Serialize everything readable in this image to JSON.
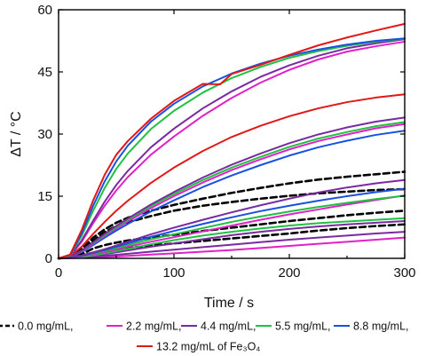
{
  "chart_data": {
    "type": "line",
    "xlabel": "Time / s",
    "ylabel": "ΔT / °C",
    "xlim": [
      0,
      300
    ],
    "ylim": [
      0,
      60
    ],
    "x_ticks": [
      0,
      100,
      200,
      300
    ],
    "y_ticks": [
      0,
      15,
      30,
      45,
      60
    ],
    "x_tick_labels": [
      "0",
      "100",
      "200",
      "300"
    ],
    "y_tick_labels": [
      "0",
      "15",
      "30",
      "45",
      "60"
    ],
    "grid": false,
    "legend_position": "bottom",
    "legend_entries": [
      {
        "label": "0.0 mg/mL,",
        "color": "#000000",
        "dash": "dashed"
      },
      {
        "label": "2.2 mg/mL,",
        "color": "#e020c8",
        "dash": "solid"
      },
      {
        "label": "4.4 mg/mL,",
        "color": "#7a2aa0",
        "dash": "solid"
      },
      {
        "label": "5.5 mg/mL,",
        "color": "#20c040",
        "dash": "solid"
      },
      {
        "label": "8.8 mg/mL,",
        "color": "#1850e0",
        "dash": "solid"
      },
      {
        "label": "13.2 mg/mL of Fe₃O₄",
        "color": "#e01818",
        "dash": "solid"
      }
    ],
    "series": [
      {
        "color": "#000000",
        "dash": "dashed",
        "x": [
          0,
          10,
          20,
          30,
          40,
          50,
          60,
          80,
          100,
          125,
          150,
          175,
          200,
          225,
          250,
          275,
          300
        ],
        "values": [
          0,
          0.2,
          0.8,
          1.3,
          1.7,
          2.1,
          2.5,
          3.1,
          3.6,
          4.2,
          4.8,
          5.4,
          6.0,
          6.7,
          7.3,
          7.8,
          8.2
        ]
      },
      {
        "color": "#000000",
        "dash": "dashed",
        "x": [
          0,
          10,
          20,
          30,
          40,
          50,
          60,
          80,
          100,
          125,
          150,
          175,
          200,
          225,
          250,
          275,
          300
        ],
        "values": [
          0,
          0.2,
          1.0,
          2.4,
          3.2,
          3.8,
          4.3,
          5.0,
          5.7,
          6.6,
          7.4,
          8.2,
          9.0,
          9.7,
          10.4,
          11.0,
          11.5
        ]
      },
      {
        "color": "#000000",
        "dash": "dashed",
        "x": [
          0,
          10,
          20,
          30,
          40,
          50,
          60,
          80,
          100,
          125,
          150,
          175,
          200,
          225,
          250,
          275,
          300
        ],
        "values": [
          0,
          0.3,
          2.0,
          4.3,
          6.3,
          7.8,
          8.7,
          10.2,
          11.5,
          12.7,
          13.6,
          14.4,
          15.1,
          15.7,
          16.1,
          16.5,
          16.7
        ]
      },
      {
        "color": "#000000",
        "dash": "dashed",
        "x": [
          0,
          10,
          20,
          30,
          40,
          50,
          60,
          80,
          100,
          125,
          150,
          175,
          200,
          225,
          250,
          275,
          300
        ],
        "values": [
          0,
          0.3,
          2.2,
          5.0,
          7.0,
          8.6,
          9.8,
          11.5,
          12.9,
          14.4,
          15.8,
          17.0,
          18.1,
          19.0,
          19.7,
          20.3,
          20.9
        ]
      },
      {
        "color": "#e020c8",
        "dash": "solid",
        "x": [
          0,
          20,
          40,
          60,
          80,
          100,
          125,
          150,
          175,
          200,
          225,
          250,
          275,
          300
        ],
        "values": [
          0,
          0.1,
          0.3,
          0.6,
          0.9,
          1.2,
          1.6,
          2.0,
          2.5,
          3.0,
          3.5,
          4.0,
          4.5,
          5.0
        ]
      },
      {
        "color": "#7a2aa0",
        "dash": "solid",
        "x": [
          0,
          20,
          40,
          60,
          80,
          100,
          125,
          150,
          175,
          200,
          225,
          250,
          275,
          300
        ],
        "values": [
          0,
          0.2,
          0.6,
          1.1,
          1.6,
          2.1,
          2.7,
          3.3,
          3.9,
          4.5,
          5.0,
          5.5,
          6.0,
          6.4
        ]
      },
      {
        "color": "#7a2aa0",
        "dash": "solid",
        "x": [
          0,
          20,
          40,
          60,
          80,
          100,
          125,
          150,
          175,
          200,
          225,
          250,
          275,
          300
        ],
        "values": [
          0,
          0.3,
          1.0,
          1.9,
          2.8,
          3.6,
          4.6,
          5.6,
          6.4,
          7.1,
          7.7,
          8.2,
          8.6,
          9.0
        ]
      },
      {
        "color": "#20c040",
        "dash": "solid",
        "x": [
          0,
          20,
          40,
          60,
          80,
          100,
          125,
          150,
          175,
          200,
          225,
          250,
          275,
          300
        ],
        "values": [
          0,
          0.3,
          1.2,
          2.3,
          3.4,
          4.4,
          5.5,
          6.4,
          7.2,
          7.9,
          8.5,
          8.9,
          9.3,
          9.7
        ]
      },
      {
        "color": "#e020c8",
        "dash": "solid",
        "x": [
          0,
          20,
          40,
          60,
          80,
          100,
          125,
          150,
          175,
          200,
          225,
          250,
          275,
          300
        ],
        "values": [
          0,
          0.5,
          1.5,
          2.8,
          4.0,
          5.1,
          6.5,
          7.9,
          9.3,
          10.6,
          11.8,
          13.0,
          14.1,
          15.2
        ]
      },
      {
        "color": "#20c040",
        "dash": "solid",
        "x": [
          0,
          20,
          40,
          60,
          80,
          100,
          125,
          150,
          175,
          200,
          225,
          250,
          275,
          300
        ],
        "values": [
          0,
          0.6,
          1.8,
          3.2,
          4.6,
          5.8,
          7.3,
          8.8,
          10.1,
          11.3,
          12.4,
          13.4,
          14.3,
          15.1
        ]
      },
      {
        "color": "#1850e0",
        "dash": "solid",
        "x": [
          0,
          20,
          40,
          60,
          80,
          100,
          125,
          150,
          175,
          200,
          225,
          250,
          275,
          300
        ],
        "values": [
          0,
          0.6,
          2.0,
          3.6,
          5.2,
          6.6,
          8.3,
          9.9,
          11.4,
          12.7,
          13.9,
          15.0,
          16.0,
          16.8
        ]
      },
      {
        "color": "#7a2aa0",
        "dash": "solid",
        "x": [
          0,
          20,
          40,
          60,
          80,
          100,
          125,
          150,
          175,
          200,
          225,
          250,
          275,
          300
        ],
        "values": [
          0,
          0.7,
          2.2,
          4.0,
          5.8,
          7.4,
          9.3,
          11.1,
          12.8,
          14.4,
          15.9,
          17.1,
          18.1,
          18.9
        ]
      },
      {
        "color": "#1850e0",
        "dash": "solid",
        "x": [
          0,
          10,
          20,
          30,
          40,
          50,
          60,
          80,
          100,
          125,
          150,
          175,
          200,
          225,
          250,
          275,
          300
        ],
        "values": [
          0,
          0.3,
          1.5,
          3.2,
          5.0,
          6.7,
          8.3,
          11.3,
          14.0,
          17.2,
          20.0,
          22.5,
          24.8,
          26.8,
          28.4,
          29.8,
          30.8
        ]
      },
      {
        "color": "#e020c8",
        "dash": "solid",
        "x": [
          0,
          10,
          20,
          30,
          40,
          50,
          60,
          80,
          100,
          125,
          150,
          175,
          200,
          225,
          250,
          275,
          300
        ],
        "values": [
          0,
          0.3,
          1.7,
          3.5,
          5.4,
          7.2,
          8.9,
          12.1,
          15.0,
          18.3,
          21.3,
          23.9,
          26.3,
          28.3,
          29.9,
          31.4,
          32.4
        ]
      },
      {
        "color": "#20c040",
        "dash": "solid",
        "x": [
          0,
          10,
          20,
          30,
          40,
          50,
          60,
          80,
          100,
          125,
          150,
          175,
          200,
          225,
          250,
          275,
          300
        ],
        "values": [
          0,
          0.3,
          1.8,
          3.7,
          5.6,
          7.5,
          9.3,
          12.6,
          15.5,
          18.9,
          21.9,
          24.5,
          26.9,
          28.9,
          30.5,
          31.9,
          32.9
        ]
      },
      {
        "color": "#7a2aa0",
        "dash": "solid",
        "x": [
          0,
          10,
          20,
          30,
          40,
          50,
          60,
          80,
          100,
          125,
          150,
          175,
          200,
          225,
          250,
          275,
          300
        ],
        "values": [
          0,
          0.3,
          1.9,
          3.9,
          5.9,
          7.8,
          9.6,
          13.0,
          16.0,
          19.5,
          22.6,
          25.3,
          27.8,
          29.9,
          31.6,
          33.0,
          34.0
        ]
      },
      {
        "color": "#e01818",
        "dash": "solid",
        "x": [
          0,
          10,
          20,
          30,
          40,
          50,
          60,
          80,
          100,
          125,
          150,
          175,
          200,
          225,
          250,
          275,
          300
        ],
        "values": [
          0,
          0.5,
          2.8,
          5.9,
          8.8,
          11.5,
          13.9,
          18.2,
          21.9,
          25.9,
          29.3,
          32.0,
          34.3,
          36.2,
          37.7,
          38.8,
          39.6
        ]
      },
      {
        "color": "#e020c8",
        "dash": "solid",
        "x": [
          0,
          10,
          20,
          30,
          40,
          50,
          60,
          80,
          100,
          125,
          150,
          175,
          200,
          225,
          250,
          275,
          300
        ],
        "values": [
          0,
          0.6,
          4.0,
          8.5,
          12.7,
          16.4,
          19.6,
          25.0,
          29.4,
          34.4,
          38.7,
          42.4,
          45.5,
          48.0,
          49.9,
          51.2,
          52.3
        ]
      },
      {
        "color": "#7a2aa0",
        "dash": "solid",
        "x": [
          0,
          10,
          20,
          30,
          40,
          50,
          60,
          80,
          100,
          125,
          150,
          175,
          200,
          225,
          250,
          275,
          300
        ],
        "values": [
          0,
          0.6,
          4.3,
          9.1,
          13.7,
          17.7,
          21.1,
          26.8,
          31.3,
          36.2,
          40.3,
          43.8,
          46.6,
          48.9,
          50.7,
          51.9,
          52.9
        ]
      },
      {
        "color": "#20c040",
        "dash": "solid",
        "x": [
          0,
          10,
          20,
          30,
          40,
          50,
          60,
          80,
          100,
          125,
          150,
          175,
          200,
          225,
          250,
          275,
          300
        ],
        "values": [
          0,
          0.7,
          5.4,
          11.5,
          17.0,
          21.6,
          25.3,
          31.2,
          35.6,
          40.0,
          43.5,
          46.2,
          48.4,
          50.0,
          51.3,
          52.3,
          53.0
        ]
      },
      {
        "color": "#1850e0",
        "dash": "solid",
        "x": [
          0,
          10,
          20,
          30,
          40,
          50,
          60,
          80,
          100,
          125,
          150,
          175,
          200,
          225,
          250,
          275,
          300
        ],
        "values": [
          0,
          0.8,
          6.0,
          12.7,
          18.6,
          23.4,
          27.2,
          33.0,
          37.3,
          41.5,
          44.6,
          47.0,
          48.9,
          50.4,
          51.6,
          52.5,
          53.1
        ]
      },
      {
        "color": "#e01818",
        "dash": "solid",
        "x": [
          0,
          10,
          20,
          30,
          40,
          50,
          60,
          80,
          100,
          125,
          140,
          150,
          175,
          200,
          225,
          250,
          275,
          300
        ],
        "values": [
          0,
          0.9,
          6.8,
          14.0,
          20.2,
          25.0,
          28.3,
          33.7,
          38.0,
          42.1,
          42.0,
          44.5,
          46.7,
          49.1,
          51.4,
          53.3,
          55.0,
          56.6
        ]
      }
    ]
  }
}
